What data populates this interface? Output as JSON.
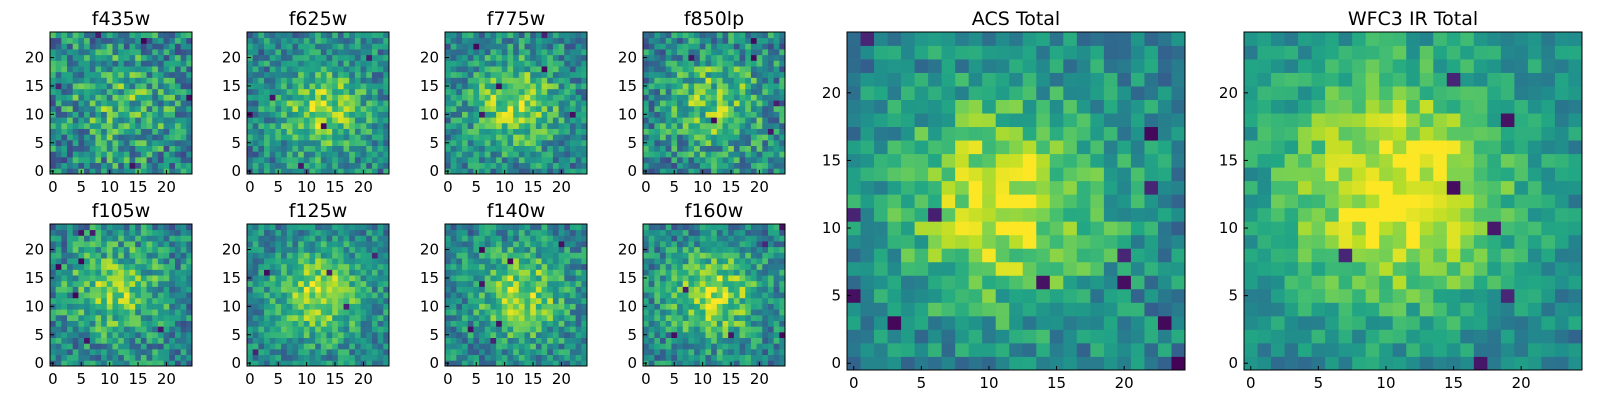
{
  "chart_data": [
    {
      "type": "heatmap",
      "title": "f435w",
      "grid_size": 25,
      "xticks": [
        0,
        5,
        10,
        15,
        20
      ],
      "yticks": [
        0,
        5,
        10,
        15,
        20
      ],
      "xlim": [
        0,
        25
      ],
      "ylim": [
        0,
        25
      ],
      "colormap": "viridis",
      "field": {
        "seed": 435,
        "amp": 0.2,
        "sigma": 7.0,
        "cx": 12,
        "cy": 12,
        "noise": 0.28,
        "dark_spots": 6
      }
    },
    {
      "type": "heatmap",
      "title": "f625w",
      "grid_size": 25,
      "xticks": [
        0,
        5,
        10,
        15,
        20
      ],
      "yticks": [
        0,
        5,
        10,
        15,
        20
      ],
      "xlim": [
        0,
        25
      ],
      "ylim": [
        0,
        25
      ],
      "colormap": "viridis",
      "field": {
        "seed": 625,
        "amp": 0.38,
        "sigma": 5.5,
        "cx": 13,
        "cy": 11,
        "noise": 0.22,
        "dark_spots": 5
      }
    },
    {
      "type": "heatmap",
      "title": "f775w",
      "grid_size": 25,
      "xticks": [
        0,
        5,
        10,
        15,
        20
      ],
      "yticks": [
        0,
        5,
        10,
        15,
        20
      ],
      "xlim": [
        0,
        25
      ],
      "ylim": [
        0,
        25
      ],
      "colormap": "viridis",
      "field": {
        "seed": 775,
        "amp": 0.4,
        "sigma": 5.5,
        "cx": 12,
        "cy": 12,
        "noise": 0.22,
        "dark_spots": 6
      }
    },
    {
      "type": "heatmap",
      "title": "f850lp",
      "grid_size": 25,
      "xticks": [
        0,
        5,
        10,
        15,
        20
      ],
      "yticks": [
        0,
        5,
        10,
        15,
        20
      ],
      "xlim": [
        0,
        25
      ],
      "ylim": [
        0,
        25
      ],
      "colormap": "viridis",
      "field": {
        "seed": 850,
        "amp": 0.3,
        "sigma": 6.0,
        "cx": 12,
        "cy": 12,
        "noise": 0.26,
        "dark_spots": 6
      }
    },
    {
      "type": "heatmap",
      "title": "f105w",
      "grid_size": 25,
      "xticks": [
        0,
        5,
        10,
        15,
        20
      ],
      "yticks": [
        0,
        5,
        10,
        15,
        20
      ],
      "xlim": [
        0,
        25
      ],
      "ylim": [
        0,
        25
      ],
      "colormap": "viridis",
      "field": {
        "seed": 105,
        "amp": 0.32,
        "sigma": 6.0,
        "cx": 11,
        "cy": 13,
        "noise": 0.24,
        "dark_spots": 7
      }
    },
    {
      "type": "heatmap",
      "title": "f125w",
      "grid_size": 25,
      "xticks": [
        0,
        5,
        10,
        15,
        20
      ],
      "yticks": [
        0,
        5,
        10,
        15,
        20
      ],
      "xlim": [
        0,
        25
      ],
      "ylim": [
        0,
        25
      ],
      "colormap": "viridis",
      "field": {
        "seed": 125,
        "amp": 0.42,
        "sigma": 5.5,
        "cx": 12,
        "cy": 12,
        "noise": 0.2,
        "dark_spots": 5
      }
    },
    {
      "type": "heatmap",
      "title": "f140w",
      "grid_size": 25,
      "xticks": [
        0,
        5,
        10,
        15,
        20
      ],
      "yticks": [
        0,
        5,
        10,
        15,
        20
      ],
      "xlim": [
        0,
        25
      ],
      "ylim": [
        0,
        25
      ],
      "colormap": "viridis",
      "field": {
        "seed": 140,
        "amp": 0.4,
        "sigma": 5.5,
        "cx": 13,
        "cy": 12,
        "noise": 0.22,
        "dark_spots": 7
      }
    },
    {
      "type": "heatmap",
      "title": "f160w",
      "grid_size": 25,
      "xticks": [
        0,
        5,
        10,
        15,
        20
      ],
      "yticks": [
        0,
        5,
        10,
        15,
        20
      ],
      "xlim": [
        0,
        25
      ],
      "ylim": [
        0,
        25
      ],
      "colormap": "viridis",
      "field": {
        "seed": 160,
        "amp": 0.42,
        "sigma": 5.5,
        "cx": 12,
        "cy": 12,
        "noise": 0.22,
        "dark_spots": 6
      }
    },
    {
      "type": "heatmap",
      "title": "ACS Total",
      "grid_size": 25,
      "xticks": [
        0,
        5,
        10,
        15,
        20
      ],
      "yticks": [
        0,
        5,
        10,
        15,
        20
      ],
      "xlim": [
        0,
        25
      ],
      "ylim": [
        0,
        25
      ],
      "colormap": "viridis",
      "field": {
        "seed": 2001,
        "amp": 0.5,
        "sigma": 5.5,
        "cx": 11,
        "cy": 12,
        "noise": 0.18,
        "dark_spots": 12
      }
    },
    {
      "type": "heatmap",
      "title": "WFC3 IR Total",
      "grid_size": 25,
      "xticks": [
        0,
        5,
        10,
        15,
        20
      ],
      "yticks": [
        0,
        5,
        10,
        15,
        20
      ],
      "xlim": [
        0,
        25
      ],
      "ylim": [
        0,
        25
      ],
      "colormap": "viridis",
      "field": {
        "seed": 3001,
        "amp": 0.55,
        "sigma": 6.5,
        "cx": 11,
        "cy": 13,
        "noise": 0.14,
        "dark_spots": 7
      }
    }
  ]
}
